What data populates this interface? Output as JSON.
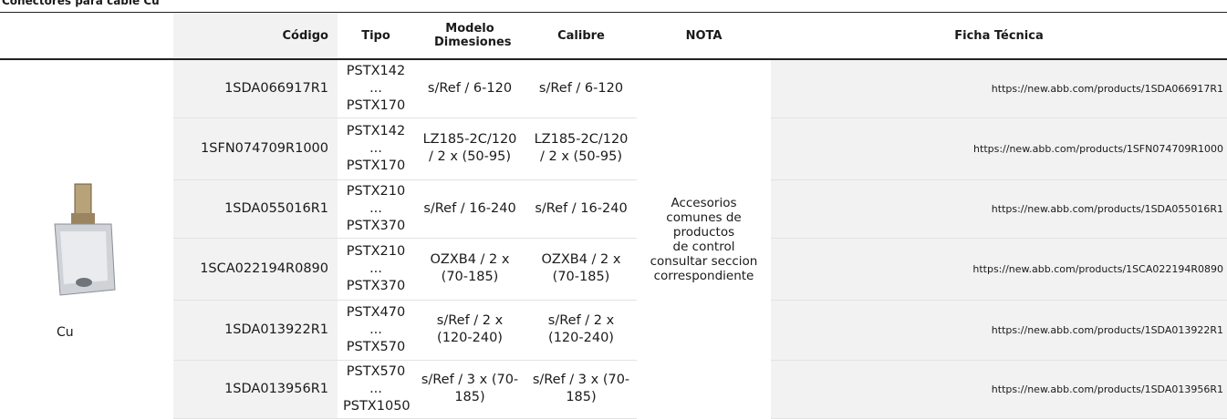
{
  "title": "Conectores para cable Cu",
  "table": {
    "headers": [
      "Código",
      "Tipo",
      "Modelo Dimesiones",
      "Calibre",
      "NOTA",
      "Ficha Técnica"
    ],
    "group_label": "Cu",
    "note": "Accesorios comunes de productos\nde control\nconsultar seccion correspondiente",
    "rows": [
      [
        "1SDA066917R1",
        "PSTX142 ... PSTX170",
        "s/Ref / 6-120",
        "s/Ref / 6-120",
        "https://new.abb.com/products/1SDA066917R1"
      ],
      [
        "1SFN074709R1000",
        "PSTX142 ... PSTX170",
        "LZ185-2C/120 / 2 x (50-95)",
        "LZ185-2C/120 / 2 x (50-95)",
        "https://new.abb.com/products/1SFN074709R1000"
      ],
      [
        "1SDA055016R1",
        "PSTX210 ... PSTX370",
        "s/Ref / 16-240",
        "s/Ref / 16-240",
        "https://new.abb.com/products/1SDA055016R1"
      ],
      [
        "1SCA022194R0890",
        "PSTX210 ... PSTX370",
        "OZXB4 / 2 x (70-185)",
        "OZXB4 / 2 x (70-185)",
        "https://new.abb.com/products/1SCA022194R0890"
      ],
      [
        "1SDA013922R1",
        "PSTX470 ... PSTX570",
        "s/Ref / 2 x (120-240)",
        "s/Ref / 2 x (120-240)",
        "https://new.abb.com/products/1SDA013922R1"
      ],
      [
        "1SDA013956R1",
        "PSTX570 ... PSTX1050",
        "s/Ref / 3 x (70-185)",
        "s/Ref / 3 x (70-185)",
        "https://new.abb.com/products/1SDA013956R1"
      ]
    ]
  }
}
